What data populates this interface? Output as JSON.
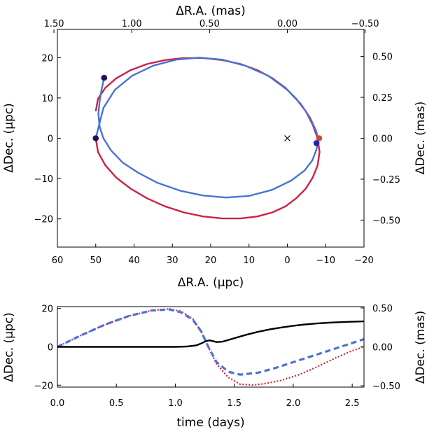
{
  "chart_data": [
    {
      "type": "line",
      "panel": "orbit",
      "xlabel": "ΔR.A. (μpc)",
      "ylabel": "ΔDec. (μpc)",
      "x2label": "ΔR.A. (mas)",
      "y2label": "ΔDec. (mas)",
      "xlim": [
        60,
        -20
      ],
      "ylim": [
        -27,
        27
      ],
      "x_ticks": [
        "60",
        "50",
        "40",
        "30",
        "20",
        "10",
        "0",
        "−10",
        "−20"
      ],
      "y_ticks": [
        "−20",
        "−10",
        "0",
        "10",
        "20"
      ],
      "x2_ticks": [
        "1.50",
        "1.00",
        "0.50",
        "0.00",
        "−0.50"
      ],
      "y2_ticks": [
        "−0.50",
        "−0.25",
        "0.00",
        "0.25",
        "0.50"
      ],
      "series": [
        {
          "color": "#cc2244",
          "x": [
            50,
            49.4,
            47.5,
            44.6,
            40.9,
            36.6,
            31.9,
            27,
            22,
            17,
            12.2,
            7.8,
            3.9,
            0.5,
            -2.3,
            -4.8,
            -6.6,
            -7.9,
            -8.4,
            -7.9,
            -6.6,
            -4.8,
            -2.3,
            0.5,
            3.9,
            7.8,
            12.2,
            17,
            22,
            27,
            31.9,
            36.6,
            40.9,
            44.6,
            47.5,
            49.4,
            50
          ],
          "y": [
            0,
            -3.4,
            -6.7,
            -9.8,
            -12.5,
            -14.9,
            -16.9,
            -18.4,
            -19.4,
            -19.9,
            -19.9,
            -19.4,
            -18.4,
            -16.9,
            -14.9,
            -12.5,
            -9.8,
            -6.7,
            -3.4,
            0,
            3.4,
            6.7,
            9.8,
            12.5,
            14.9,
            16.9,
            18.4,
            19.4,
            19.9,
            19.9,
            19.4,
            18.4,
            16.9,
            14.9,
            12.5,
            9.8,
            6.7
          ]
        },
        {
          "color": "#4a72d4",
          "x": [
            47.8,
            48.5,
            49,
            49.3,
            49,
            48,
            46,
            43,
            39,
            34,
            28,
            22,
            16,
            10,
            4,
            -1,
            -4.5,
            -6.5,
            -7.5,
            -8,
            -8,
            -7.5,
            -6,
            -3.5,
            0,
            5,
            11,
            17,
            23,
            29,
            35,
            40.5,
            45,
            48,
            50
          ],
          "y": [
            15,
            12,
            9,
            6,
            3,
            0,
            -3,
            -6,
            -8.5,
            -11,
            -13,
            -14.2,
            -14.7,
            -14.3,
            -12.8,
            -10.5,
            -8,
            -5.5,
            -3,
            -1.2,
            0,
            1.8,
            5,
            8.5,
            12,
            15.5,
            18,
            19.5,
            20,
            19.5,
            18,
            15.5,
            12,
            7.5,
            0
          ]
        }
      ],
      "markers": [
        {
          "x": 47.8,
          "y": 15,
          "color": "#2a0b5e"
        },
        {
          "x": 50,
          "y": 0,
          "color": "#2a0b5e"
        },
        {
          "x": -8.3,
          "y": 0,
          "color": "#d14b2a"
        },
        {
          "x": -7.6,
          "y": -1.2,
          "color": "#2222aa"
        },
        {
          "x": 0,
          "y": 0,
          "color": "#000000",
          "symbol": "x"
        }
      ]
    },
    {
      "type": "line",
      "panel": "time",
      "xlabel": "time (days)",
      "ylabel": "ΔDec. (μpc)",
      "y2label": "ΔDec. (mas)",
      "xlim": [
        0,
        2.6
      ],
      "ylim": [
        -21,
        21
      ],
      "x_ticks": [
        "0.0",
        "0.5",
        "1.0",
        "1.5",
        "2.0",
        "2.5"
      ],
      "y_ticks": [
        "−20",
        "0",
        "20"
      ],
      "y2_ticks": [
        "−0.50",
        "0.00",
        "0.50"
      ],
      "series": [
        {
          "color": "#000000",
          "style": "solid",
          "x": [
            0,
            0.2,
            0.4,
            0.6,
            0.8,
            1.0,
            1.1,
            1.18,
            1.22,
            1.26,
            1.29,
            1.32,
            1.35,
            1.4,
            1.5,
            1.6,
            1.7,
            1.8,
            1.9,
            2.0,
            2.1,
            2.2,
            2.3,
            2.4,
            2.5,
            2.6
          ],
          "y": [
            0,
            0,
            0,
            0,
            0,
            0,
            0.2,
            0.8,
            1.8,
            3.0,
            3.4,
            3.0,
            2.5,
            2.7,
            4.5,
            6.3,
            7.8,
            9.1,
            10.1,
            11,
            11.7,
            12.2,
            12.6,
            12.9,
            13.1,
            13.3
          ]
        },
        {
          "color": "#4a72d4",
          "style": "dashed",
          "x": [
            0,
            0.2,
            0.4,
            0.6,
            0.8,
            0.95,
            1.05,
            1.15,
            1.22,
            1.28,
            1.35,
            1.45,
            1.55,
            1.7,
            1.85,
            2.0,
            2.15,
            2.3,
            2.45,
            2.6
          ],
          "y": [
            0,
            6,
            11.5,
            16,
            19,
            19.5,
            18,
            14,
            8,
            0,
            -8,
            -13,
            -14.5,
            -13.5,
            -11,
            -8,
            -5,
            -2,
            1,
            4
          ]
        },
        {
          "color": "#cc2244",
          "style": "dotted",
          "x": [
            0,
            0.2,
            0.4,
            0.6,
            0.8,
            0.95,
            1.05,
            1.15,
            1.22,
            1.28,
            1.35,
            1.45,
            1.55,
            1.65,
            1.75,
            1.9,
            2.05,
            2.2,
            2.35,
            2.5,
            2.6
          ],
          "y": [
            0,
            6,
            11.5,
            16,
            19,
            19.8,
            18.5,
            14.5,
            8,
            0,
            -9,
            -16,
            -19.5,
            -19.9,
            -19.3,
            -17.5,
            -14.5,
            -10.5,
            -6,
            -2,
            0
          ]
        }
      ]
    }
  ]
}
